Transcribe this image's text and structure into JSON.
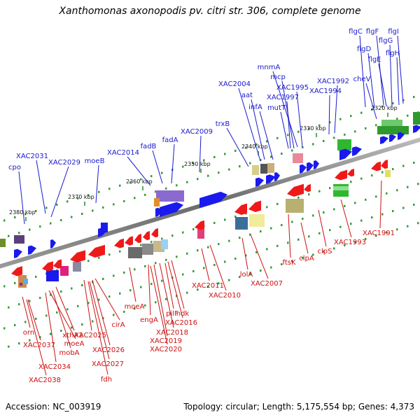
{
  "title": "Xanthomonas axonopodis pv. citri str. 306, complete genome",
  "footer": {
    "accession": "Accession: NC_003919",
    "summary": "Topology: circular; Length: 5,175,554 bp; Genes: 4,373"
  },
  "colors": {
    "forward": "#1a1aee",
    "reverse": "#ee1a1a",
    "label_forward": "#1a1acc",
    "label_reverse": "#cc1111"
  },
  "tick_labels": [
    "2320 kbp",
    "2330 kbp",
    "2340 kbp",
    "2350 kbp",
    "2360 kbp",
    "2370 kbp",
    "2380 kbp"
  ],
  "forward_labels": [
    "flgC",
    "flgF",
    "flgI",
    "flgD",
    "flgG",
    "flgE",
    "flgH",
    "mnmA",
    "cheV",
    "mcp",
    "XAC1992",
    "XAC2004",
    "XAC1995",
    "aat",
    "XAC1997",
    "XAC1994",
    "infA",
    "mutT",
    "trxB",
    "XAC2009",
    "fadB",
    "fadA",
    "XAC2014",
    "XAC2031",
    "moeB",
    "XAC2029",
    "cpo"
  ],
  "reverse_labels": [
    "XAC1991",
    "XAC1993",
    "clpS",
    "ftsK",
    "clpA",
    "lolA",
    "XAC2007",
    "XAC2011",
    "XAC2010",
    "moeA",
    "ndk",
    "pilF",
    "engA",
    "XAC2016",
    "XAC2018",
    "XAC2019",
    "XAC2020",
    "cirA",
    "orn",
    "XAC2025",
    "xthA2",
    "moeA",
    "XAC2037",
    "XAC2026",
    "mobA",
    "XAC2027",
    "XAC2034",
    "fdh",
    "XAC2038"
  ]
}
